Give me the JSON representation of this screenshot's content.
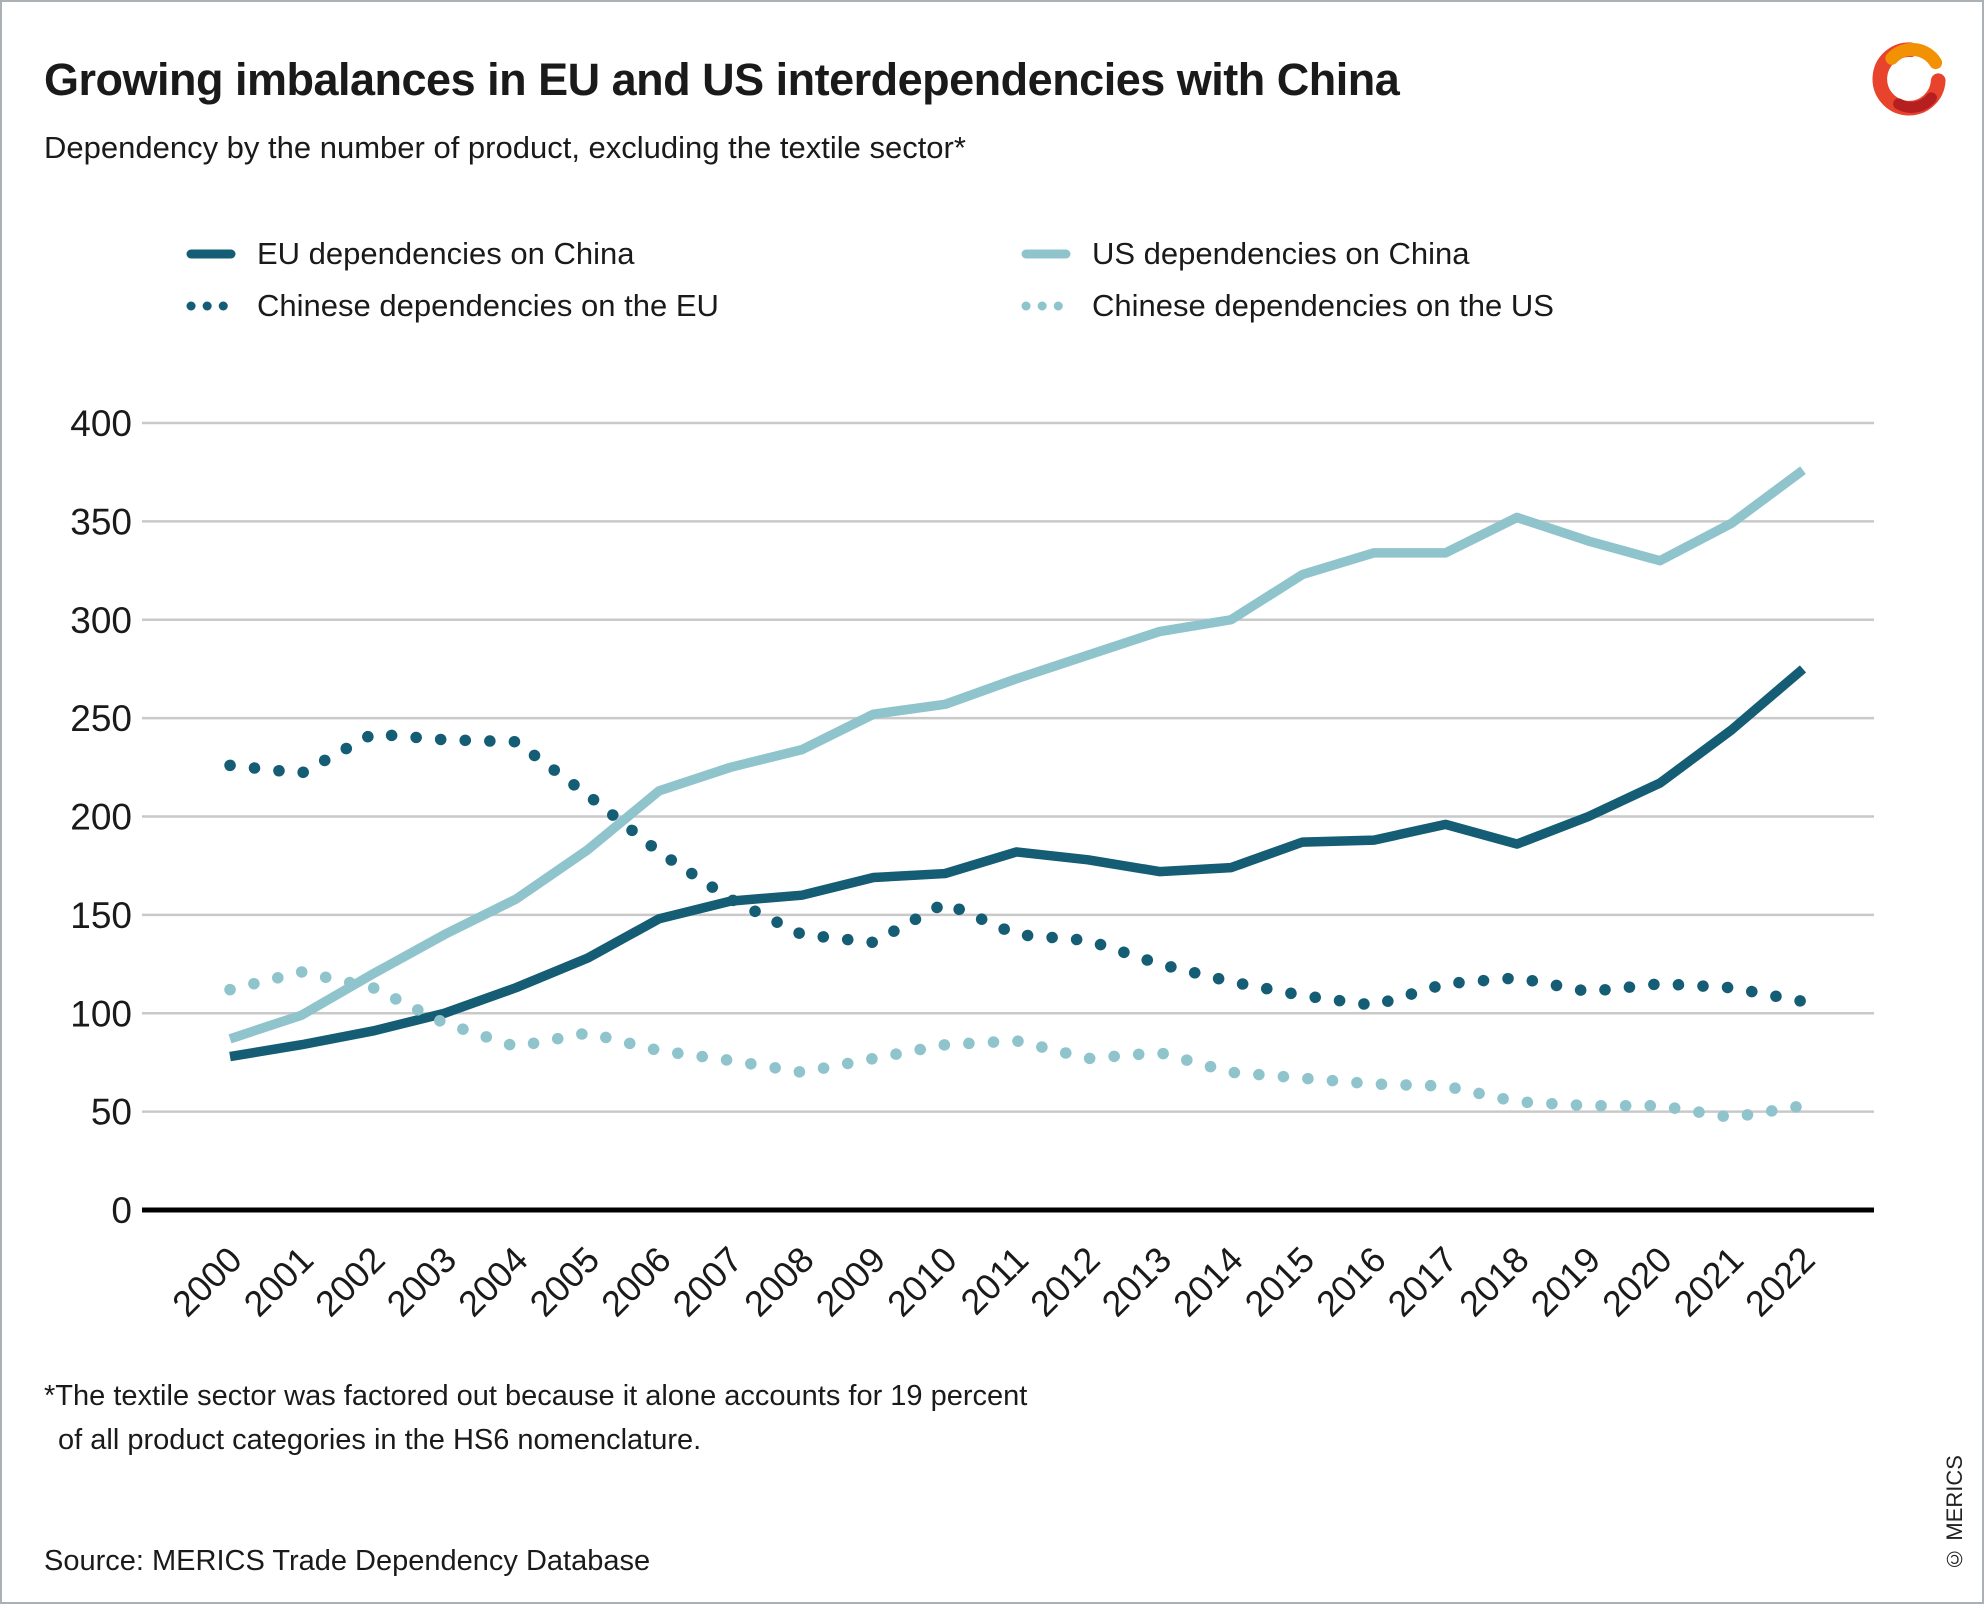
{
  "title": "Growing imbalances in EU and US interdependencies with China",
  "subtitle": "Dependency by the number of product, excluding the textile sector*",
  "footnote_line1": "*The textile sector was factored out because it alone accounts for 19 percent",
  "footnote_line2": "of all product categories in the HS6 nomenclature.",
  "source": "Source: MERICS Trade Dependency Database",
  "copyright": "© MERICS",
  "colors": {
    "dark_teal": "#155d74",
    "light_teal": "#90c4cd",
    "gridline": "#c9c9c9",
    "axis": "#000000",
    "text": "#1a1a1a"
  },
  "logo": {
    "name": "merics-logo",
    "arc_colors": [
      "#e8432d",
      "#f29104",
      "#b51f1f"
    ]
  },
  "chart_data": {
    "type": "line",
    "title": "",
    "xlabel": "",
    "ylabel": "",
    "ylim": [
      0,
      400
    ],
    "yticks": [
      0,
      50,
      100,
      150,
      200,
      250,
      300,
      350,
      400
    ],
    "grid": true,
    "legend_position": "top",
    "x": [
      2000,
      2001,
      2002,
      2003,
      2004,
      2005,
      2006,
      2007,
      2008,
      2009,
      2010,
      2011,
      2012,
      2013,
      2014,
      2015,
      2016,
      2017,
      2018,
      2019,
      2020,
      2021,
      2022
    ],
    "series": [
      {
        "name": "EU dependencies on China",
        "style": "solid",
        "color": "#155d74",
        "values": [
          78,
          84,
          91,
          100,
          113,
          128,
          148,
          157,
          160,
          169,
          171,
          182,
          178,
          172,
          174,
          187,
          188,
          196,
          186,
          200,
          217,
          244,
          275
        ]
      },
      {
        "name": "US dependencies on China",
        "style": "solid",
        "color": "#90c4cd",
        "values": [
          87,
          99,
          120,
          140,
          158,
          183,
          213,
          225,
          234,
          252,
          257,
          270,
          282,
          294,
          300,
          323,
          334,
          334,
          352,
          340,
          330,
          349,
          376
        ]
      },
      {
        "name": "Chinese dependencies on the EU",
        "style": "dotted",
        "color": "#155d74",
        "values": [
          226,
          222,
          242,
          239,
          238,
          211,
          182,
          158,
          140,
          136,
          156,
          140,
          137,
          125,
          116,
          109,
          104,
          115,
          118,
          111,
          115,
          113,
          106
        ]
      },
      {
        "name": "Chinese dependencies on the US",
        "style": "dotted",
        "color": "#90c4cd",
        "values": [
          112,
          121,
          113,
          95,
          83,
          90,
          81,
          76,
          70,
          77,
          84,
          86,
          77,
          80,
          70,
          67,
          64,
          63,
          55,
          53,
          53,
          47,
          53
        ]
      }
    ]
  }
}
